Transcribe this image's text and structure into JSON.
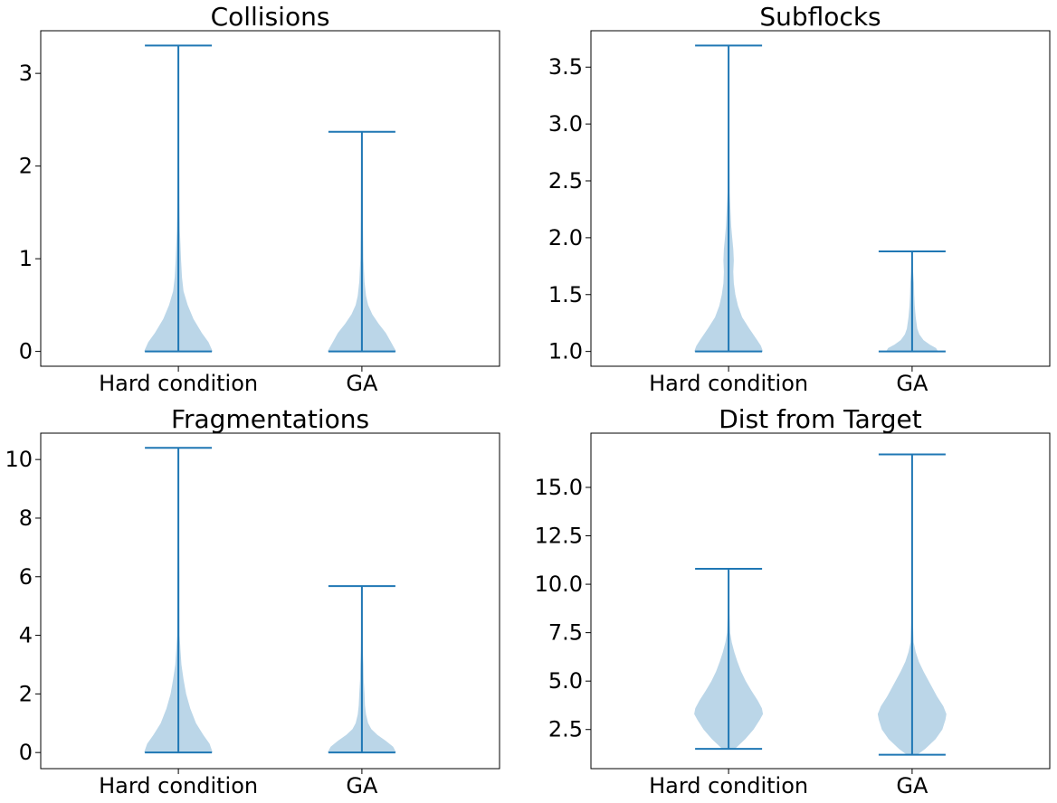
{
  "chart_data": [
    {
      "type": "violin",
      "title": "Collisions",
      "categories": [
        "Hard condition",
        "GA"
      ],
      "ylim": [
        -0.16,
        3.46
      ],
      "yticks": [
        0,
        1,
        2,
        3
      ],
      "ytick_labels": [
        "0",
        "1",
        "2",
        "3"
      ],
      "series": [
        {
          "name": "Hard condition",
          "min": 0,
          "max": 3.3,
          "density": [
            [
              0,
              0.66
            ],
            [
              0.1,
              0.58
            ],
            [
              0.2,
              0.45
            ],
            [
              0.35,
              0.29
            ],
            [
              0.5,
              0.18
            ],
            [
              0.65,
              0.1
            ],
            [
              0.8,
              0.07
            ],
            [
              1.0,
              0.05
            ],
            [
              1.3,
              0.03
            ],
            [
              1.6,
              0.02
            ],
            [
              2.0,
              0.015
            ],
            [
              2.5,
              0.01
            ],
            [
              3.0,
              0.008
            ],
            [
              3.3,
              0.005
            ]
          ]
        },
        {
          "name": "GA",
          "min": 0,
          "max": 2.37,
          "density": [
            [
              0,
              0.66
            ],
            [
              0.1,
              0.56
            ],
            [
              0.2,
              0.46
            ],
            [
              0.3,
              0.32
            ],
            [
              0.4,
              0.2
            ],
            [
              0.5,
              0.12
            ],
            [
              0.6,
              0.08
            ],
            [
              0.75,
              0.05
            ],
            [
              1.0,
              0.03
            ],
            [
              1.5,
              0.02
            ],
            [
              2.0,
              0.015
            ],
            [
              2.37,
              0.005
            ]
          ]
        }
      ]
    },
    {
      "type": "violin",
      "title": "Subflocks",
      "categories": [
        "Hard condition",
        "GA"
      ],
      "ylim": [
        0.87,
        3.82
      ],
      "yticks": [
        1.0,
        1.5,
        2.0,
        2.5,
        3.0,
        3.5
      ],
      "ytick_labels": [
        "1.0",
        "1.5",
        "2.0",
        "2.5",
        "3.0",
        "3.5"
      ],
      "series": [
        {
          "name": "Hard condition",
          "min": 1.0,
          "max": 3.69,
          "density": [
            [
              1.0,
              0.66
            ],
            [
              1.05,
              0.62
            ],
            [
              1.1,
              0.55
            ],
            [
              1.2,
              0.4
            ],
            [
              1.3,
              0.26
            ],
            [
              1.4,
              0.18
            ],
            [
              1.5,
              0.13
            ],
            [
              1.6,
              0.1
            ],
            [
              1.7,
              0.09
            ],
            [
              1.8,
              0.1
            ],
            [
              1.9,
              0.09
            ],
            [
              2.0,
              0.07
            ],
            [
              2.1,
              0.05
            ],
            [
              2.2,
              0.04
            ],
            [
              2.4,
              0.02
            ],
            [
              2.7,
              0.015
            ],
            [
              3.0,
              0.01
            ],
            [
              3.4,
              0.008
            ],
            [
              3.69,
              0.005
            ]
          ]
        },
        {
          "name": "GA",
          "min": 1.0,
          "max": 1.88,
          "density": [
            [
              1.0,
              0.5
            ],
            [
              1.03,
              0.46
            ],
            [
              1.06,
              0.34
            ],
            [
              1.1,
              0.22
            ],
            [
              1.15,
              0.14
            ],
            [
              1.2,
              0.1
            ],
            [
              1.3,
              0.07
            ],
            [
              1.4,
              0.05
            ],
            [
              1.5,
              0.04
            ],
            [
              1.6,
              0.035
            ],
            [
              1.7,
              0.02
            ],
            [
              1.8,
              0.012
            ],
            [
              1.88,
              0.005
            ]
          ]
        }
      ]
    },
    {
      "type": "violin",
      "title": "Fragmentations",
      "categories": [
        "Hard condition",
        "GA"
      ],
      "ylim": [
        -0.55,
        10.9
      ],
      "yticks": [
        0,
        2,
        4,
        6,
        8,
        10
      ],
      "ytick_labels": [
        "0",
        "2",
        "4",
        "6",
        "8",
        "10"
      ],
      "series": [
        {
          "name": "Hard condition",
          "min": 0,
          "max": 10.4,
          "density": [
            [
              0,
              0.66
            ],
            [
              0.3,
              0.6
            ],
            [
              0.6,
              0.48
            ],
            [
              1.0,
              0.34
            ],
            [
              1.5,
              0.23
            ],
            [
              2.0,
              0.15
            ],
            [
              2.5,
              0.1
            ],
            [
              3.0,
              0.06
            ],
            [
              3.5,
              0.04
            ],
            [
              4.0,
              0.025
            ],
            [
              5.0,
              0.02
            ],
            [
              6.0,
              0.02
            ],
            [
              7.0,
              0.015
            ],
            [
              8.0,
              0.01
            ],
            [
              9.0,
              0.008
            ],
            [
              10.4,
              0.005
            ]
          ]
        },
        {
          "name": "GA",
          "min": 0,
          "max": 5.68,
          "density": [
            [
              0,
              0.66
            ],
            [
              0.2,
              0.6
            ],
            [
              0.4,
              0.46
            ],
            [
              0.6,
              0.3
            ],
            [
              0.8,
              0.18
            ],
            [
              1.0,
              0.12
            ],
            [
              1.3,
              0.08
            ],
            [
              1.6,
              0.06
            ],
            [
              2.0,
              0.05
            ],
            [
              2.5,
              0.035
            ],
            [
              3.0,
              0.03
            ],
            [
              3.5,
              0.02
            ],
            [
              4.0,
              0.015
            ],
            [
              5.0,
              0.01
            ],
            [
              5.68,
              0.005
            ]
          ]
        }
      ]
    },
    {
      "type": "violin",
      "title": "Dist from Target",
      "categories": [
        "Hard condition",
        "GA"
      ],
      "ylim": [
        0.48,
        17.8
      ],
      "yticks": [
        2.5,
        5.0,
        7.5,
        10.0,
        12.5,
        15.0
      ],
      "ytick_labels": [
        "2.5",
        "5.0",
        "7.5",
        "10.0",
        "12.5",
        "15.0"
      ],
      "series": [
        {
          "name": "Hard condition",
          "min": 1.5,
          "max": 10.8,
          "density": [
            [
              1.5,
              0.12
            ],
            [
              2.0,
              0.32
            ],
            [
              2.5,
              0.48
            ],
            [
              3.0,
              0.6
            ],
            [
              3.3,
              0.66
            ],
            [
              3.6,
              0.64
            ],
            [
              4.0,
              0.56
            ],
            [
              4.5,
              0.44
            ],
            [
              5.0,
              0.33
            ],
            [
              5.5,
              0.24
            ],
            [
              6.0,
              0.17
            ],
            [
              6.5,
              0.11
            ],
            [
              7.0,
              0.06
            ],
            [
              7.5,
              0.03
            ],
            [
              8.5,
              0.015
            ],
            [
              9.5,
              0.01
            ],
            [
              10.8,
              0.005
            ]
          ]
        },
        {
          "name": "GA",
          "min": 1.2,
          "max": 16.7,
          "density": [
            [
              1.2,
              0.1
            ],
            [
              1.5,
              0.25
            ],
            [
              2.0,
              0.45
            ],
            [
              2.5,
              0.58
            ],
            [
              3.0,
              0.64
            ],
            [
              3.3,
              0.66
            ],
            [
              3.7,
              0.6
            ],
            [
              4.2,
              0.48
            ],
            [
              5.0,
              0.32
            ],
            [
              5.5,
              0.22
            ],
            [
              6.0,
              0.13
            ],
            [
              6.5,
              0.07
            ],
            [
              7.0,
              0.03
            ],
            [
              8.0,
              0.015
            ],
            [
              10.0,
              0.01
            ],
            [
              13.0,
              0.008
            ],
            [
              16.7,
              0.005
            ]
          ]
        }
      ]
    }
  ]
}
